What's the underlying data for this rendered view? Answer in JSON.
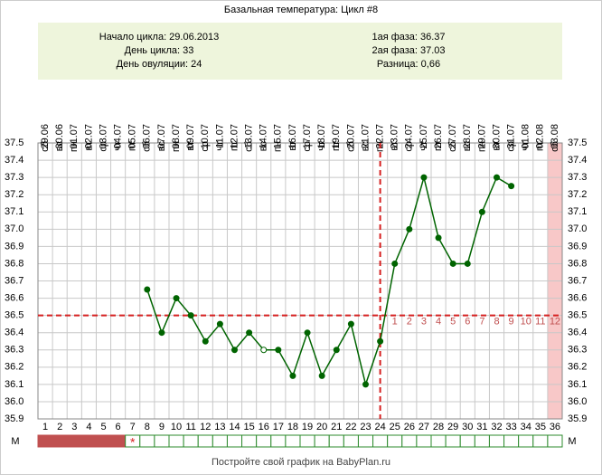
{
  "chart_data": {
    "type": "line",
    "title": "Базальная температура: Цикл #8",
    "info_left": [
      "Начало цикла: 29.06.2013",
      "День цикла: 33",
      "День овуляции: 24"
    ],
    "info_right": [
      "1ая фаза: 36.37",
      "2ая фаза: 37.03",
      "Разница: 0,66"
    ],
    "categories": [
      "1",
      "2",
      "3",
      "4",
      "5",
      "6",
      "7",
      "8",
      "9",
      "10",
      "11",
      "12",
      "13",
      "14",
      "15",
      "16",
      "17",
      "18",
      "19",
      "20",
      "21",
      "22",
      "23",
      "24",
      "25",
      "26",
      "27",
      "28",
      "29",
      "30",
      "31",
      "32",
      "33",
      "34",
      "35",
      "36"
    ],
    "dates": [
      "29.06",
      "30.06",
      "01.07",
      "02.07",
      "03.07",
      "04.07",
      "05.07",
      "06.07",
      "07.07",
      "08.07",
      "09.07",
      "10.07",
      "11.07",
      "12.07",
      "13.07",
      "14.07",
      "15.07",
      "16.07",
      "17.07",
      "18.07",
      "19.07",
      "20.07",
      "21.07",
      "22.07",
      "23.07",
      "24.07",
      "25.07",
      "26.07",
      "27.07",
      "28.07",
      "29.07",
      "30.07",
      "31.07",
      "01.08",
      "02.08",
      "03.08"
    ],
    "weekdays": [
      "сб",
      "вс",
      "пн",
      "вт",
      "ср",
      "чт",
      "пт",
      "сб",
      "вс",
      "пн",
      "вт",
      "ср",
      "чт",
      "пт",
      "сб",
      "вс",
      "пн",
      "вт",
      "ср",
      "чт",
      "пт",
      "сб",
      "вс",
      "пн",
      "вт",
      "ср",
      "чт",
      "пт",
      "сб",
      "вс",
      "пн",
      "вт",
      "ср",
      "чт",
      "пт",
      "сб"
    ],
    "values": [
      null,
      null,
      null,
      null,
      null,
      null,
      null,
      36.65,
      36.4,
      36.6,
      36.5,
      36.35,
      36.45,
      36.3,
      36.4,
      36.3,
      36.3,
      36.15,
      36.4,
      36.15,
      36.3,
      36.45,
      36.1,
      36.35,
      36.8,
      37.0,
      37.3,
      36.95,
      36.8,
      36.8,
      37.1,
      37.3,
      37.25,
      null,
      null,
      null
    ],
    "color": "#006400",
    "open_marker_day": 16,
    "coverline": 36.5,
    "ovulation_day": 24,
    "phase2_labels": [
      1,
      2,
      3,
      4,
      5,
      6,
      7,
      8,
      9,
      10,
      11,
      12
    ],
    "highlight_day": 36,
    "menstruation_days": 6,
    "mens_marker": "*",
    "mens_label": "М",
    "ylim": [
      35.9,
      37.5
    ],
    "yticks": [
      35.9,
      {
        "value": 36.0,
        "label": "36.0"
      },
      36.1,
      36.2,
      36.3,
      36.4,
      36.5,
      36.6,
      36.7,
      36.8,
      36.9,
      {
        "value": 37.0,
        "label": "37.0"
      },
      37.1,
      37.2,
      37.3,
      37.4,
      37.5
    ],
    "footer": "Постройте свой график на BabyPlan.ru"
  }
}
